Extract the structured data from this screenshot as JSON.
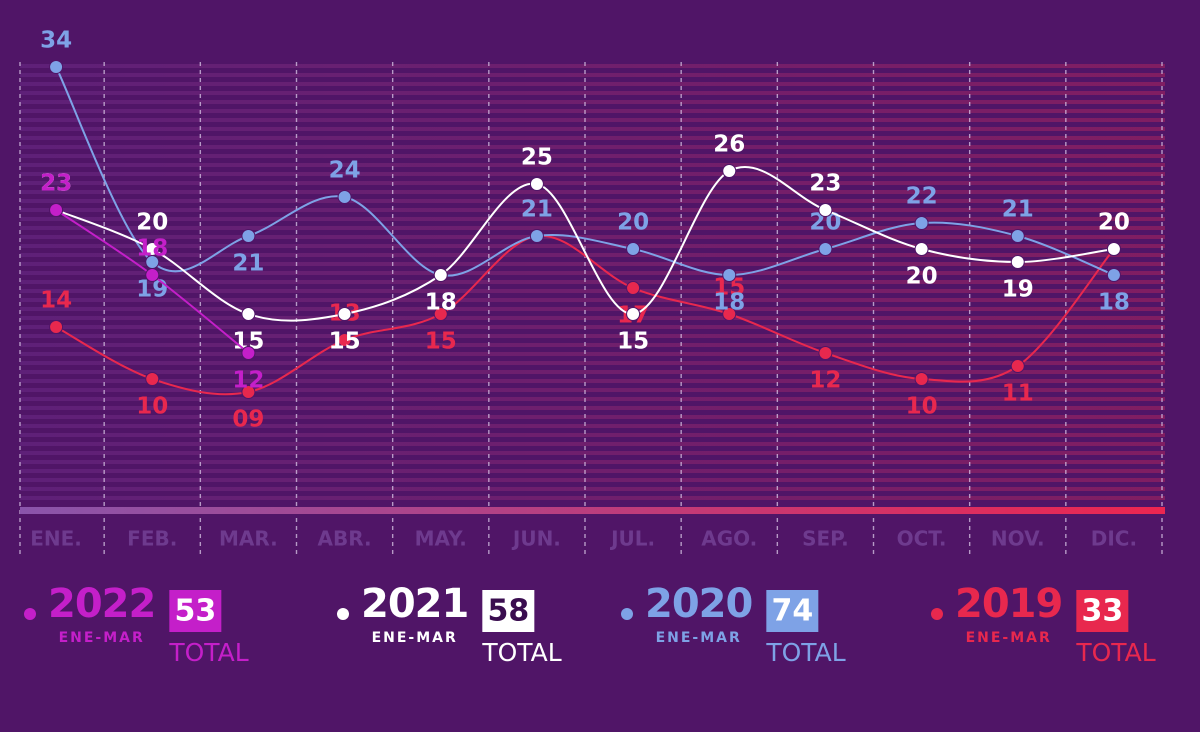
{
  "chart_data": {
    "type": "line",
    "categories": [
      "ENE.",
      "FEB.",
      "MAR.",
      "ABR.",
      "MAY.",
      "JUN.",
      "JUL.",
      "AGO.",
      "SEP.",
      "OCT.",
      "NOV.",
      "DIC."
    ],
    "ylim": [
      0,
      35
    ],
    "series": [
      {
        "name": "2022",
        "color": "#c41fc9",
        "values": [
          23,
          18,
          12,
          null,
          null,
          null,
          null,
          null,
          null,
          null,
          null,
          null
        ],
        "period": "ENE-MAR",
        "total": 53,
        "total_label": "TOTAL",
        "box_text_color": "#ffffff"
      },
      {
        "name": "2021",
        "color": "#ffffff",
        "values": [
          23,
          20,
          15,
          15,
          18,
          25,
          15,
          26,
          23,
          20,
          19,
          20
        ],
        "period": "ENE-MAR",
        "total": 58,
        "total_label": "TOTAL",
        "box_text_color": "#3a0d4f"
      },
      {
        "name": "2020",
        "color": "#7ea2e6",
        "values": [
          34,
          19,
          21,
          24,
          18,
          21,
          20,
          18,
          20,
          22,
          21,
          18
        ],
        "period": "ENE-MAR",
        "total": 74,
        "total_label": "TOTAL",
        "box_text_color": "#ffffff"
      },
      {
        "name": "2019",
        "color": "#e8284e",
        "values": [
          14,
          10,
          9,
          13,
          15,
          21,
          17,
          15,
          12,
          10,
          11,
          20
        ],
        "value_labels": [
          "14",
          "10",
          "09",
          "13",
          "15",
          "21",
          "17",
          "15",
          "12",
          "10",
          "11",
          "20"
        ],
        "period": "ENE-MAR",
        "total": 33,
        "total_label": "TOTAL",
        "box_text_color": "#ffffff"
      }
    ]
  }
}
